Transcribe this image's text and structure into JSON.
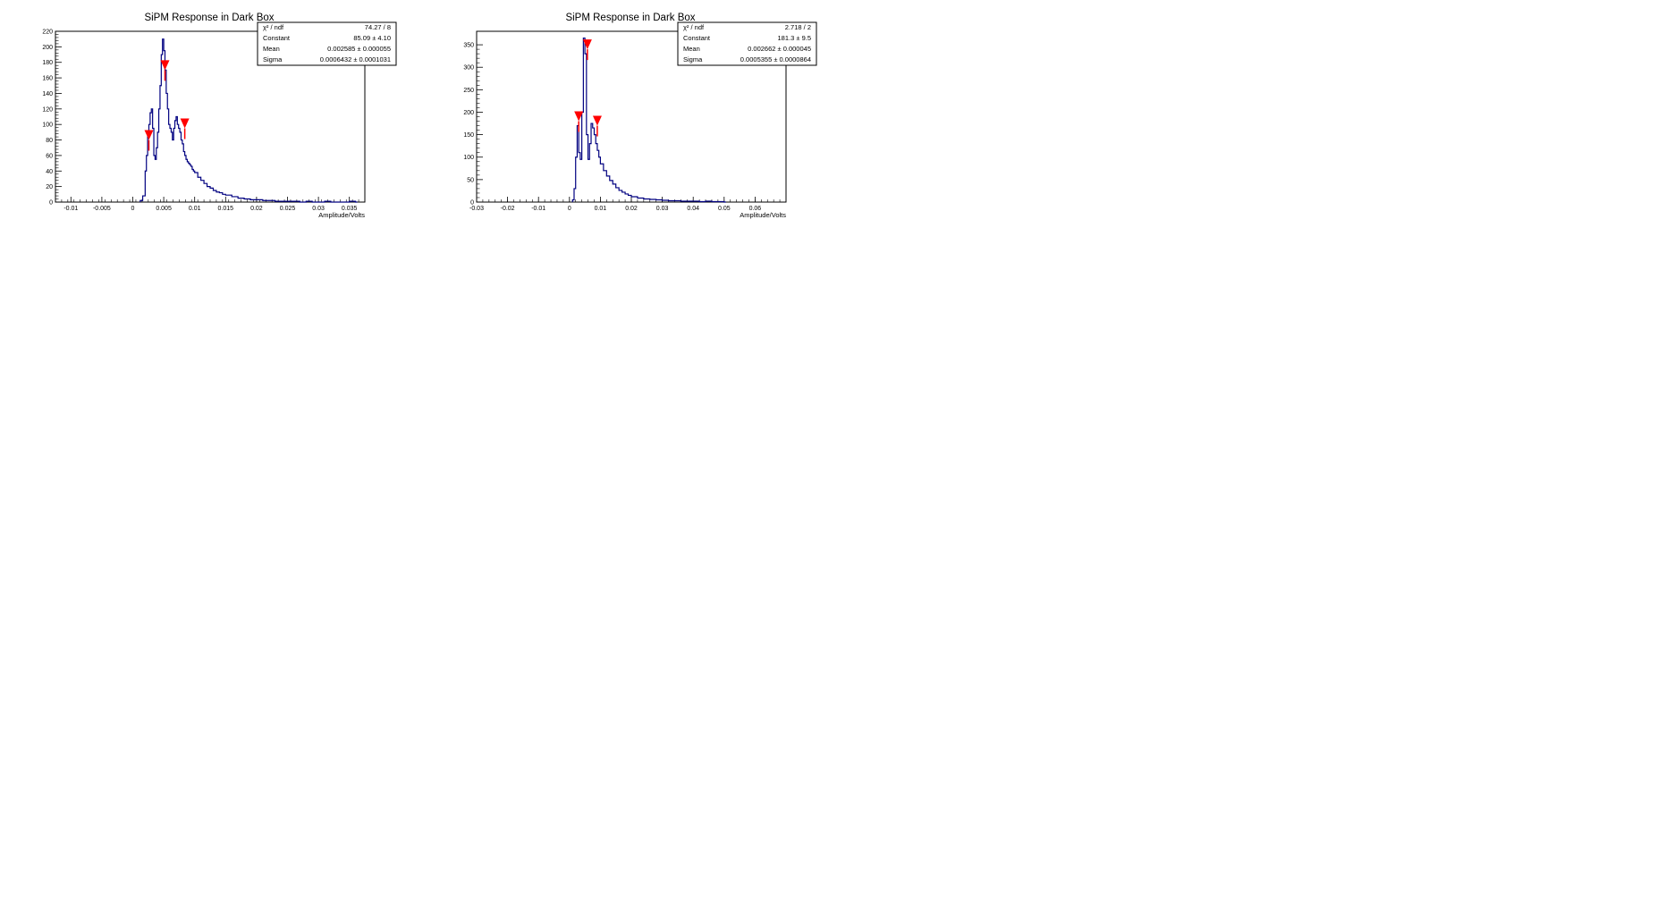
{
  "chart_data": [
    {
      "type": "histogram",
      "title": "SiPM Response in Dark Box",
      "xlabel": "Amplitude/Volts",
      "ylabel": "",
      "xlim": [
        -0.0125,
        0.0375
      ],
      "ylim": [
        0,
        220
      ],
      "x_ticks": [
        -0.01,
        -0.005,
        0,
        0.005,
        0.01,
        0.015,
        0.02,
        0.025,
        0.03,
        0.035
      ],
      "x_tick_labels": [
        "-0.01",
        "-0.005",
        "0",
        "0.005",
        "0.01",
        "0.015",
        "0.02",
        "0.025",
        "0.03",
        "0.035"
      ],
      "y_ticks": [
        0,
        20,
        40,
        60,
        80,
        100,
        120,
        140,
        160,
        180,
        200,
        220
      ],
      "y_tick_labels": [
        "0",
        "20",
        "40",
        "60",
        "80",
        "100",
        "120",
        "140",
        "160",
        "180",
        "200",
        "220"
      ],
      "series": [
        {
          "color": "#000080",
          "x": [
            0.0012,
            0.0016,
            0.002,
            0.0022,
            0.0024,
            0.0026,
            0.0028,
            0.003,
            0.0032,
            0.0034,
            0.0036,
            0.0038,
            0.004,
            0.0042,
            0.0044,
            0.0046,
            0.0048,
            0.005,
            0.0052,
            0.0054,
            0.0056,
            0.0058,
            0.006,
            0.0062,
            0.0064,
            0.0066,
            0.0068,
            0.007,
            0.0072,
            0.0074,
            0.0076,
            0.0078,
            0.008,
            0.0082,
            0.0084,
            0.0086,
            0.0088,
            0.009,
            0.0092,
            0.0094,
            0.0096,
            0.0098,
            0.01,
            0.0105,
            0.011,
            0.0115,
            0.012,
            0.0125,
            0.013,
            0.0135,
            0.014,
            0.0145,
            0.015,
            0.016,
            0.017,
            0.018,
            0.019,
            0.02,
            0.021,
            0.022,
            0.023,
            0.024,
            0.025,
            0.026,
            0.027,
            0.028,
            0.029,
            0.03,
            0.031,
            0.032,
            0.033,
            0.034,
            0.035,
            0.036
          ],
          "values": [
            2,
            8,
            40,
            60,
            85,
            100,
            115,
            120,
            95,
            60,
            55,
            70,
            90,
            120,
            150,
            190,
            210,
            195,
            170,
            140,
            120,
            100,
            95,
            90,
            80,
            95,
            105,
            110,
            100,
            95,
            90,
            80,
            75,
            65,
            60,
            55,
            52,
            50,
            48,
            46,
            42,
            40,
            38,
            32,
            28,
            24,
            20,
            18,
            15,
            13,
            12,
            10,
            9,
            7,
            5,
            4,
            3,
            3,
            2,
            2,
            1,
            1,
            1,
            1,
            0,
            1,
            0,
            0,
            1,
            0,
            0,
            0,
            1,
            0
          ]
        }
      ],
      "markers": [
        {
          "x": 0.0026,
          "y": 80
        },
        {
          "x": 0.0052,
          "y": 170
        },
        {
          "x": 0.0084,
          "y": 95
        }
      ],
      "stats": {
        "rows": [
          {
            "label": "χ² / ndf",
            "value": "74.27 / 8"
          },
          {
            "label": "Constant",
            "value": "85.09 ± 4.10"
          },
          {
            "label": "Mean",
            "value": "0.002585 ± 0.000055"
          },
          {
            "label": "Sigma",
            "value": "0.0006432 ± 0.0001031"
          }
        ]
      }
    },
    {
      "type": "histogram",
      "title": "SiPM Response in Dark Box",
      "xlabel": "Amplitude/Volts",
      "ylabel": "",
      "xlim": [
        -0.03,
        0.07
      ],
      "ylim": [
        0,
        380
      ],
      "x_ticks": [
        -0.03,
        -0.02,
        -0.01,
        0,
        0.01,
        0.02,
        0.03,
        0.04,
        0.05,
        0.06
      ],
      "x_tick_labels": [
        "-0.03",
        "-0.02",
        "-0.01",
        "0",
        "0.01",
        "0.02",
        "0.03",
        "0.04",
        "0.05",
        "0.06"
      ],
      "y_ticks": [
        0,
        50,
        100,
        150,
        200,
        250,
        300,
        350
      ],
      "y_tick_labels": [
        "0",
        "50",
        "100",
        "150",
        "200",
        "250",
        "300",
        "350"
      ],
      "series": [
        {
          "color": "#000080",
          "x": [
            0.001,
            0.0015,
            0.002,
            0.0025,
            0.003,
            0.0035,
            0.004,
            0.0045,
            0.005,
            0.0055,
            0.006,
            0.0065,
            0.007,
            0.0075,
            0.008,
            0.0085,
            0.009,
            0.0095,
            0.01,
            0.011,
            0.012,
            0.013,
            0.014,
            0.015,
            0.016,
            0.017,
            0.018,
            0.019,
            0.02,
            0.022,
            0.024,
            0.026,
            0.028,
            0.03,
            0.032,
            0.034,
            0.036,
            0.038,
            0.04,
            0.042,
            0.044,
            0.046,
            0.048,
            0.05
          ],
          "values": [
            5,
            30,
            100,
            170,
            110,
            95,
            200,
            365,
            330,
            150,
            95,
            130,
            175,
            165,
            150,
            130,
            115,
            100,
            85,
            70,
            58,
            48,
            40,
            32,
            26,
            22,
            18,
            15,
            12,
            9,
            7,
            6,
            5,
            4,
            3,
            3,
            2,
            2,
            2,
            1,
            2,
            1,
            1,
            0
          ]
        }
      ],
      "markers": [
        {
          "x": 0.003,
          "y": 180
        },
        {
          "x": 0.0058,
          "y": 340
        },
        {
          "x": 0.009,
          "y": 170
        }
      ],
      "stats": {
        "rows": [
          {
            "label": "χ² / ndf",
            "value": "2.718 / 2"
          },
          {
            "label": "Constant",
            "value": "181.3 ± 9.5"
          },
          {
            "label": "Mean",
            "value": "0.002662 ± 0.000045"
          },
          {
            "label": "Sigma",
            "value": "0.0005355 ± 0.0000864"
          }
        ]
      }
    }
  ]
}
